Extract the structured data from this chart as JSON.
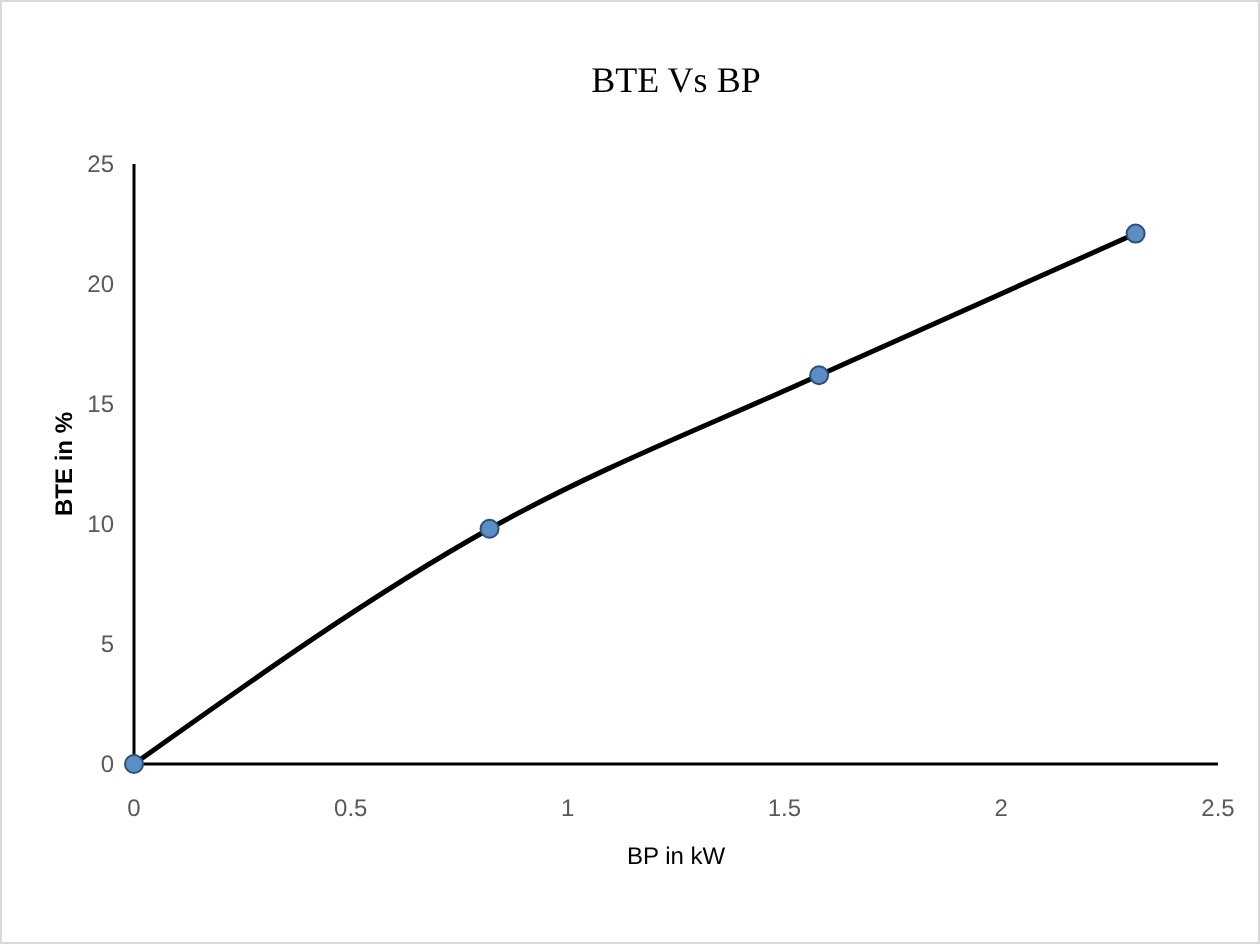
{
  "chart_data": {
    "type": "line",
    "title": "BTE Vs BP",
    "xlabel": "BP in kW",
    "ylabel": "BTE in %",
    "x": [
      0,
      0.82,
      1.58,
      2.31
    ],
    "series": [
      {
        "color": "#000000",
        "values": [
          0,
          9.8,
          16.2,
          22.1
        ]
      }
    ],
    "xlim": [
      0,
      2.5
    ],
    "xticks": [
      0,
      0.5,
      1,
      1.5,
      2,
      2.5
    ],
    "ylim": [
      0,
      25
    ],
    "yticks": [
      0,
      5,
      10,
      15,
      20,
      25
    ],
    "marker": "circle",
    "line_style": "solid"
  }
}
